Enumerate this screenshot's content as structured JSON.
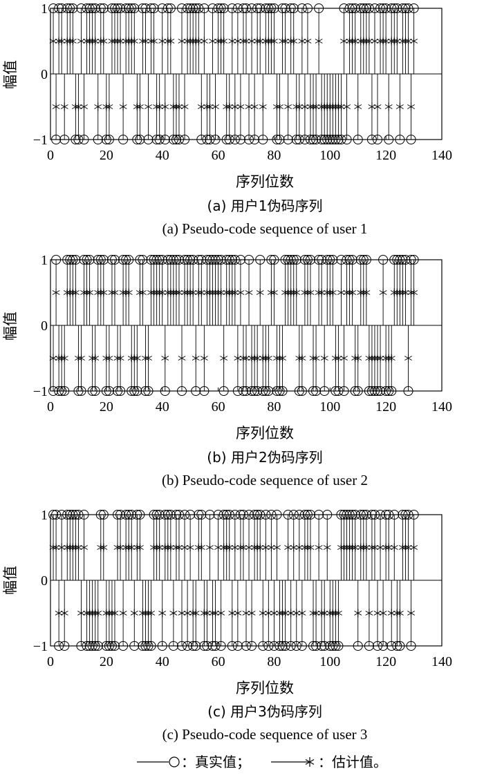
{
  "chart_data": [
    {
      "type": "stem",
      "xlabel": "序列位数",
      "ylabel": "幅值",
      "xticks": [
        0,
        20,
        40,
        60,
        80,
        100,
        120,
        140
      ],
      "yticks": [
        -1,
        0,
        1
      ],
      "xlim": [
        0,
        140
      ],
      "ylim": [
        -1,
        1
      ],
      "caption_cn": "(a) 用户1伪码序列",
      "caption_en": "(a) Pseudo-code sequence of user 1",
      "true_values": [
        1,
        -1,
        1,
        1,
        -1,
        1,
        1,
        1,
        -1,
        -1,
        1,
        -1,
        1,
        1,
        1,
        1,
        -1,
        1,
        1,
        -1,
        -1,
        1,
        1,
        1,
        1,
        -1,
        1,
        1,
        1,
        1,
        -1,
        -1,
        1,
        1,
        -1,
        1,
        1,
        -1,
        -1,
        1,
        -1,
        1,
        1,
        -1,
        -1,
        -1,
        1,
        -1,
        1,
        1,
        1,
        1,
        1,
        -1,
        1,
        -1,
        -1,
        1,
        -1,
        1,
        1,
        1,
        -1,
        -1,
        1,
        -1,
        1,
        -1,
        1,
        1,
        -1,
        1,
        -1,
        1,
        1,
        -1,
        1,
        1,
        1,
        1,
        -1,
        -1,
        1,
        1,
        -1,
        1,
        1,
        -1,
        -1,
        1,
        -1,
        1,
        -1,
        -1,
        -1,
        1,
        -1,
        -1,
        -1,
        -1,
        -1,
        -1,
        -1,
        -1,
        1,
        -1,
        1,
        1,
        1,
        -1,
        1,
        1,
        1,
        1,
        -1,
        1,
        -1,
        1,
        1,
        1,
        -1,
        1,
        1,
        1,
        -1,
        1,
        1,
        1,
        -1,
        1
      ],
      "estimated_values": [
        0.5,
        -0.5,
        0.5,
        0.5,
        -0.5,
        0.5,
        0.5,
        0.5,
        -0.5,
        -0.5,
        0.5,
        -0.5,
        0.5,
        0.5,
        0.5,
        0.5,
        -0.5,
        0.5,
        0.5,
        -0.5,
        -0.5,
        0.5,
        0.5,
        0.5,
        0.5,
        -0.5,
        0.5,
        0.5,
        0.5,
        0.5,
        -0.5,
        -0.5,
        0.5,
        0.5,
        -0.5,
        0.5,
        0.5,
        -0.5,
        -0.5,
        0.5,
        -0.5,
        0.5,
        0.5,
        -0.5,
        -0.5,
        -0.5,
        0.5,
        -0.5,
        0.5,
        0.5,
        0.5,
        0.5,
        0.5,
        -0.5,
        0.5,
        -0.5,
        -0.5,
        0.5,
        -0.5,
        0.5,
        0.5,
        0.5,
        -0.5,
        -0.5,
        0.5,
        -0.5,
        0.5,
        -0.5,
        0.5,
        0.5,
        -0.5,
        0.5,
        -0.5,
        0.5,
        0.5,
        -0.5,
        0.5,
        0.5,
        0.5,
        0.5,
        -0.5,
        -0.5,
        0.5,
        0.5,
        -0.5,
        0.5,
        0.5,
        -0.5,
        -0.5,
        0.5,
        -0.5,
        0.5,
        -0.5,
        -0.5,
        -0.5,
        0.5,
        -0.5,
        -0.5,
        -0.5,
        -0.5,
        -0.5,
        -0.5,
        -0.5,
        -0.5,
        0.5,
        -0.5,
        0.5,
        0.5,
        0.5,
        -0.5,
        0.5,
        0.5,
        0.5,
        0.5,
        -0.5,
        0.5,
        -0.5,
        0.5,
        0.5,
        0.5,
        -0.5,
        0.5,
        0.5,
        0.5,
        -0.5,
        0.5,
        0.5,
        0.5,
        -0.5,
        0.5
      ]
    },
    {
      "type": "stem",
      "xlabel": "序列位数",
      "ylabel": "幅值",
      "xticks": [
        0,
        20,
        40,
        60,
        80,
        100,
        120,
        140
      ],
      "yticks": [
        -1,
        0,
        1
      ],
      "xlim": [
        0,
        140
      ],
      "ylim": [
        -1,
        1
      ],
      "caption_cn": "(b) 用户2伪码序列",
      "caption_en": "(b) Pseudo-code sequence of user 2",
      "true_values": [
        -1,
        1,
        -1,
        -1,
        -1,
        1,
        1,
        1,
        1,
        -1,
        -1,
        1,
        1,
        1,
        -1,
        -1,
        1,
        1,
        1,
        -1,
        -1,
        1,
        1,
        -1,
        -1,
        1,
        1,
        1,
        -1,
        -1,
        -1,
        1,
        1,
        -1,
        -1,
        1,
        1,
        1,
        1,
        1,
        -1,
        1,
        1,
        1,
        1,
        1,
        -1,
        1,
        1,
        1,
        1,
        -1,
        1,
        1,
        -1,
        1,
        1,
        1,
        1,
        1,
        1,
        -1,
        1,
        1,
        1,
        1,
        -1,
        1,
        -1,
        -1,
        1,
        -1,
        -1,
        -1,
        1,
        -1,
        -1,
        -1,
        1,
        1,
        -1,
        -1,
        -1,
        1,
        1,
        1,
        1,
        1,
        -1,
        -1,
        1,
        1,
        1,
        -1,
        -1,
        1,
        1,
        -1,
        1,
        1,
        1,
        -1,
        -1,
        1,
        -1,
        1,
        1,
        1,
        -1,
        -1,
        1,
        1,
        1,
        -1,
        -1,
        -1,
        -1,
        -1,
        1,
        -1,
        -1,
        -1,
        1,
        1,
        1,
        1,
        1,
        -1,
        1,
        1
      ],
      "estimated_values": [
        -0.5,
        0.5,
        -0.5,
        -0.5,
        -0.5,
        0.5,
        0.5,
        0.5,
        0.5,
        -0.5,
        -0.5,
        0.5,
        0.5,
        0.5,
        -0.5,
        -0.5,
        0.5,
        0.5,
        0.5,
        -0.5,
        -0.5,
        0.5,
        0.5,
        -0.5,
        -0.5,
        0.5,
        0.5,
        0.5,
        -0.5,
        -0.5,
        -0.5,
        0.5,
        0.5,
        -0.5,
        -0.5,
        0.5,
        0.5,
        0.5,
        0.5,
        0.5,
        -0.5,
        0.5,
        0.5,
        0.5,
        0.5,
        0.5,
        -0.5,
        0.5,
        0.5,
        0.5,
        0.5,
        -0.5,
        0.5,
        0.5,
        -0.5,
        0.5,
        0.5,
        0.5,
        0.5,
        0.5,
        0.5,
        -0.5,
        0.5,
        0.5,
        0.5,
        0.5,
        -0.5,
        0.5,
        -0.5,
        -0.5,
        0.5,
        -0.5,
        -0.5,
        -0.5,
        0.5,
        -0.5,
        -0.5,
        -0.5,
        0.5,
        0.5,
        -0.5,
        -0.5,
        -0.5,
        0.5,
        0.5,
        0.5,
        0.5,
        0.5,
        -0.5,
        -0.5,
        0.5,
        0.5,
        0.5,
        -0.5,
        -0.5,
        0.5,
        0.5,
        -0.5,
        0.5,
        0.5,
        0.5,
        -0.5,
        -0.5,
        0.5,
        -0.5,
        0.5,
        0.5,
        0.5,
        -0.5,
        -0.5,
        0.5,
        0.5,
        0.5,
        -0.5,
        -0.5,
        -0.5,
        -0.5,
        -0.5,
        0.5,
        -0.5,
        -0.5,
        -0.5,
        0.5,
        0.5,
        0.5,
        0.5,
        0.5,
        -0.5,
        0.5,
        0.5
      ]
    },
    {
      "type": "stem",
      "xlabel": "序列位数",
      "ylabel": "幅值",
      "xticks": [
        0,
        20,
        40,
        60,
        80,
        100,
        120,
        140
      ],
      "yticks": [
        -1,
        0,
        1
      ],
      "xlim": [
        0,
        140
      ],
      "ylim": [
        -1,
        1
      ],
      "caption_cn": "(c) 用户3伪码序列",
      "caption_en": "(c) Pseudo-code sequence of user 3",
      "true_values": [
        1,
        1,
        -1,
        1,
        -1,
        1,
        1,
        1,
        1,
        1,
        -1,
        1,
        -1,
        -1,
        -1,
        -1,
        -1,
        1,
        1,
        -1,
        -1,
        -1,
        -1,
        1,
        1,
        -1,
        1,
        1,
        1,
        -1,
        1,
        1,
        -1,
        -1,
        -1,
        -1,
        1,
        1,
        1,
        -1,
        1,
        1,
        1,
        -1,
        1,
        1,
        -1,
        1,
        -1,
        1,
        -1,
        -1,
        1,
        1,
        -1,
        -1,
        1,
        -1,
        -1,
        1,
        -1,
        1,
        1,
        1,
        -1,
        1,
        -1,
        1,
        1,
        -1,
        1,
        -1,
        1,
        1,
        1,
        -1,
        1,
        -1,
        1,
        -1,
        1,
        -1,
        -1,
        -1,
        1,
        -1,
        1,
        -1,
        1,
        -1,
        1,
        1,
        1,
        -1,
        -1,
        1,
        -1,
        -1,
        1,
        -1,
        -1,
        -1,
        -1,
        1,
        1,
        1,
        1,
        1,
        1,
        -1,
        1,
        1,
        1,
        -1,
        1,
        1,
        -1,
        1,
        -1,
        1,
        1,
        -1,
        1,
        -1,
        -1,
        1,
        1,
        1,
        -1,
        1
      ],
      "estimated_values": [
        0.5,
        0.5,
        -0.5,
        0.5,
        -0.5,
        0.5,
        0.5,
        0.5,
        0.5,
        0.5,
        -0.5,
        0.5,
        -0.5,
        -0.5,
        -0.5,
        -0.5,
        -0.5,
        0.5,
        0.5,
        -0.5,
        -0.5,
        -0.5,
        -0.5,
        0.5,
        0.5,
        -0.5,
        0.5,
        0.5,
        0.5,
        -0.5,
        0.5,
        0.5,
        -0.5,
        -0.5,
        -0.5,
        -0.5,
        0.5,
        0.5,
        0.5,
        -0.5,
        0.5,
        0.5,
        0.5,
        -0.5,
        0.5,
        0.5,
        -0.5,
        0.5,
        -0.5,
        0.5,
        -0.5,
        -0.5,
        0.5,
        0.5,
        -0.5,
        -0.5,
        0.5,
        -0.5,
        -0.5,
        0.5,
        -0.5,
        0.5,
        0.5,
        0.5,
        -0.5,
        0.5,
        -0.5,
        0.5,
        0.5,
        -0.5,
        0.5,
        -0.5,
        0.5,
        0.5,
        0.5,
        -0.5,
        0.5,
        -0.5,
        0.5,
        -0.5,
        0.5,
        -0.5,
        -0.5,
        -0.5,
        0.5,
        -0.5,
        0.5,
        -0.5,
        0.5,
        -0.5,
        0.5,
        0.5,
        0.5,
        -0.5,
        -0.5,
        0.5,
        -0.5,
        -0.5,
        0.5,
        -0.5,
        -0.5,
        -0.5,
        -0.5,
        0.5,
        0.5,
        0.5,
        0.5,
        0.5,
        0.5,
        -0.5,
        0.5,
        0.5,
        0.5,
        -0.5,
        0.5,
        0.5,
        -0.5,
        0.5,
        -0.5,
        0.5,
        0.5,
        -0.5,
        0.5,
        -0.5,
        -0.5,
        0.5,
        0.5,
        0.5,
        -0.5,
        0.5
      ]
    }
  ],
  "legend": {
    "true_label": "：真实值；",
    "est_label": "：估计值。"
  }
}
